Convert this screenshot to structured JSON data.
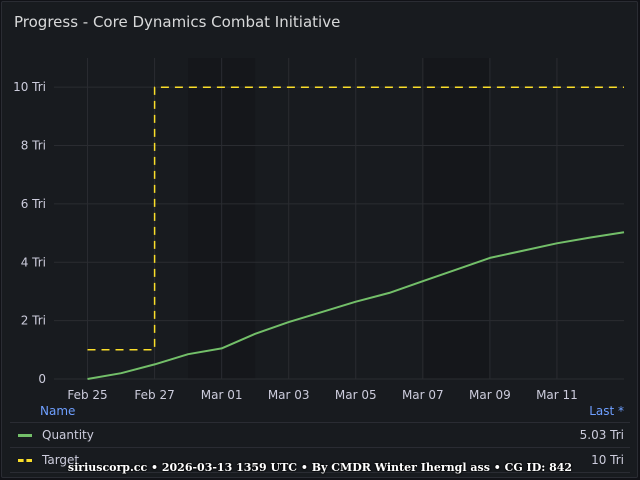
{
  "panel": {
    "title": "Progress - Core Dynamics Combat Initiative"
  },
  "chart_data": {
    "type": "line",
    "title": "Progress - Core Dynamics Combat Initiative",
    "x_start": "2026-02-24",
    "x_end": "2026-03-13",
    "xticks": [
      "Feb 25",
      "Feb 27",
      "Mar 01",
      "Mar 03",
      "Mar 05",
      "Mar 07",
      "Mar 09",
      "Mar 11"
    ],
    "yticks": [
      "0",
      "2 Tri",
      "4 Tri",
      "6 Tri",
      "8 Tri",
      "10 Tri"
    ],
    "ylim": [
      0,
      11
    ],
    "grid": true,
    "legend_placement": "bottom",
    "series": [
      {
        "name": "Quantity",
        "color": "#73bf69",
        "style": "solid",
        "x": [
          "2026-02-25",
          "2026-02-26",
          "2026-02-27",
          "2026-02-28",
          "2026-03-01",
          "2026-03-02",
          "2026-03-03",
          "2026-03-04",
          "2026-03-05",
          "2026-03-06",
          "2026-03-07",
          "2026-03-08",
          "2026-03-09",
          "2026-03-10",
          "2026-03-11",
          "2026-03-12",
          "2026-03-13"
        ],
        "values": [
          0.0,
          0.2,
          0.5,
          0.85,
          1.05,
          1.55,
          1.95,
          2.3,
          2.65,
          2.95,
          3.35,
          3.75,
          4.15,
          4.4,
          4.65,
          4.85,
          5.03
        ]
      },
      {
        "name": "Target",
        "color": "#fade2a",
        "style": "dashed",
        "x": [
          "2026-02-25",
          "2026-02-27",
          "2026-02-27",
          "2026-03-13"
        ],
        "values": [
          1,
          1,
          10,
          10
        ]
      }
    ]
  },
  "legend": {
    "name_header": "Name",
    "last_header": "Last *",
    "rows": [
      {
        "name": "Quantity",
        "last": "5.03 Tri"
      },
      {
        "name": "Target",
        "last": "10 Tri"
      }
    ]
  },
  "footer": {
    "text": "siriuscorp.cc • 2026-03-13 1359 UTC • By CMDR Winter Iherngl ass • CG ID: 842"
  }
}
